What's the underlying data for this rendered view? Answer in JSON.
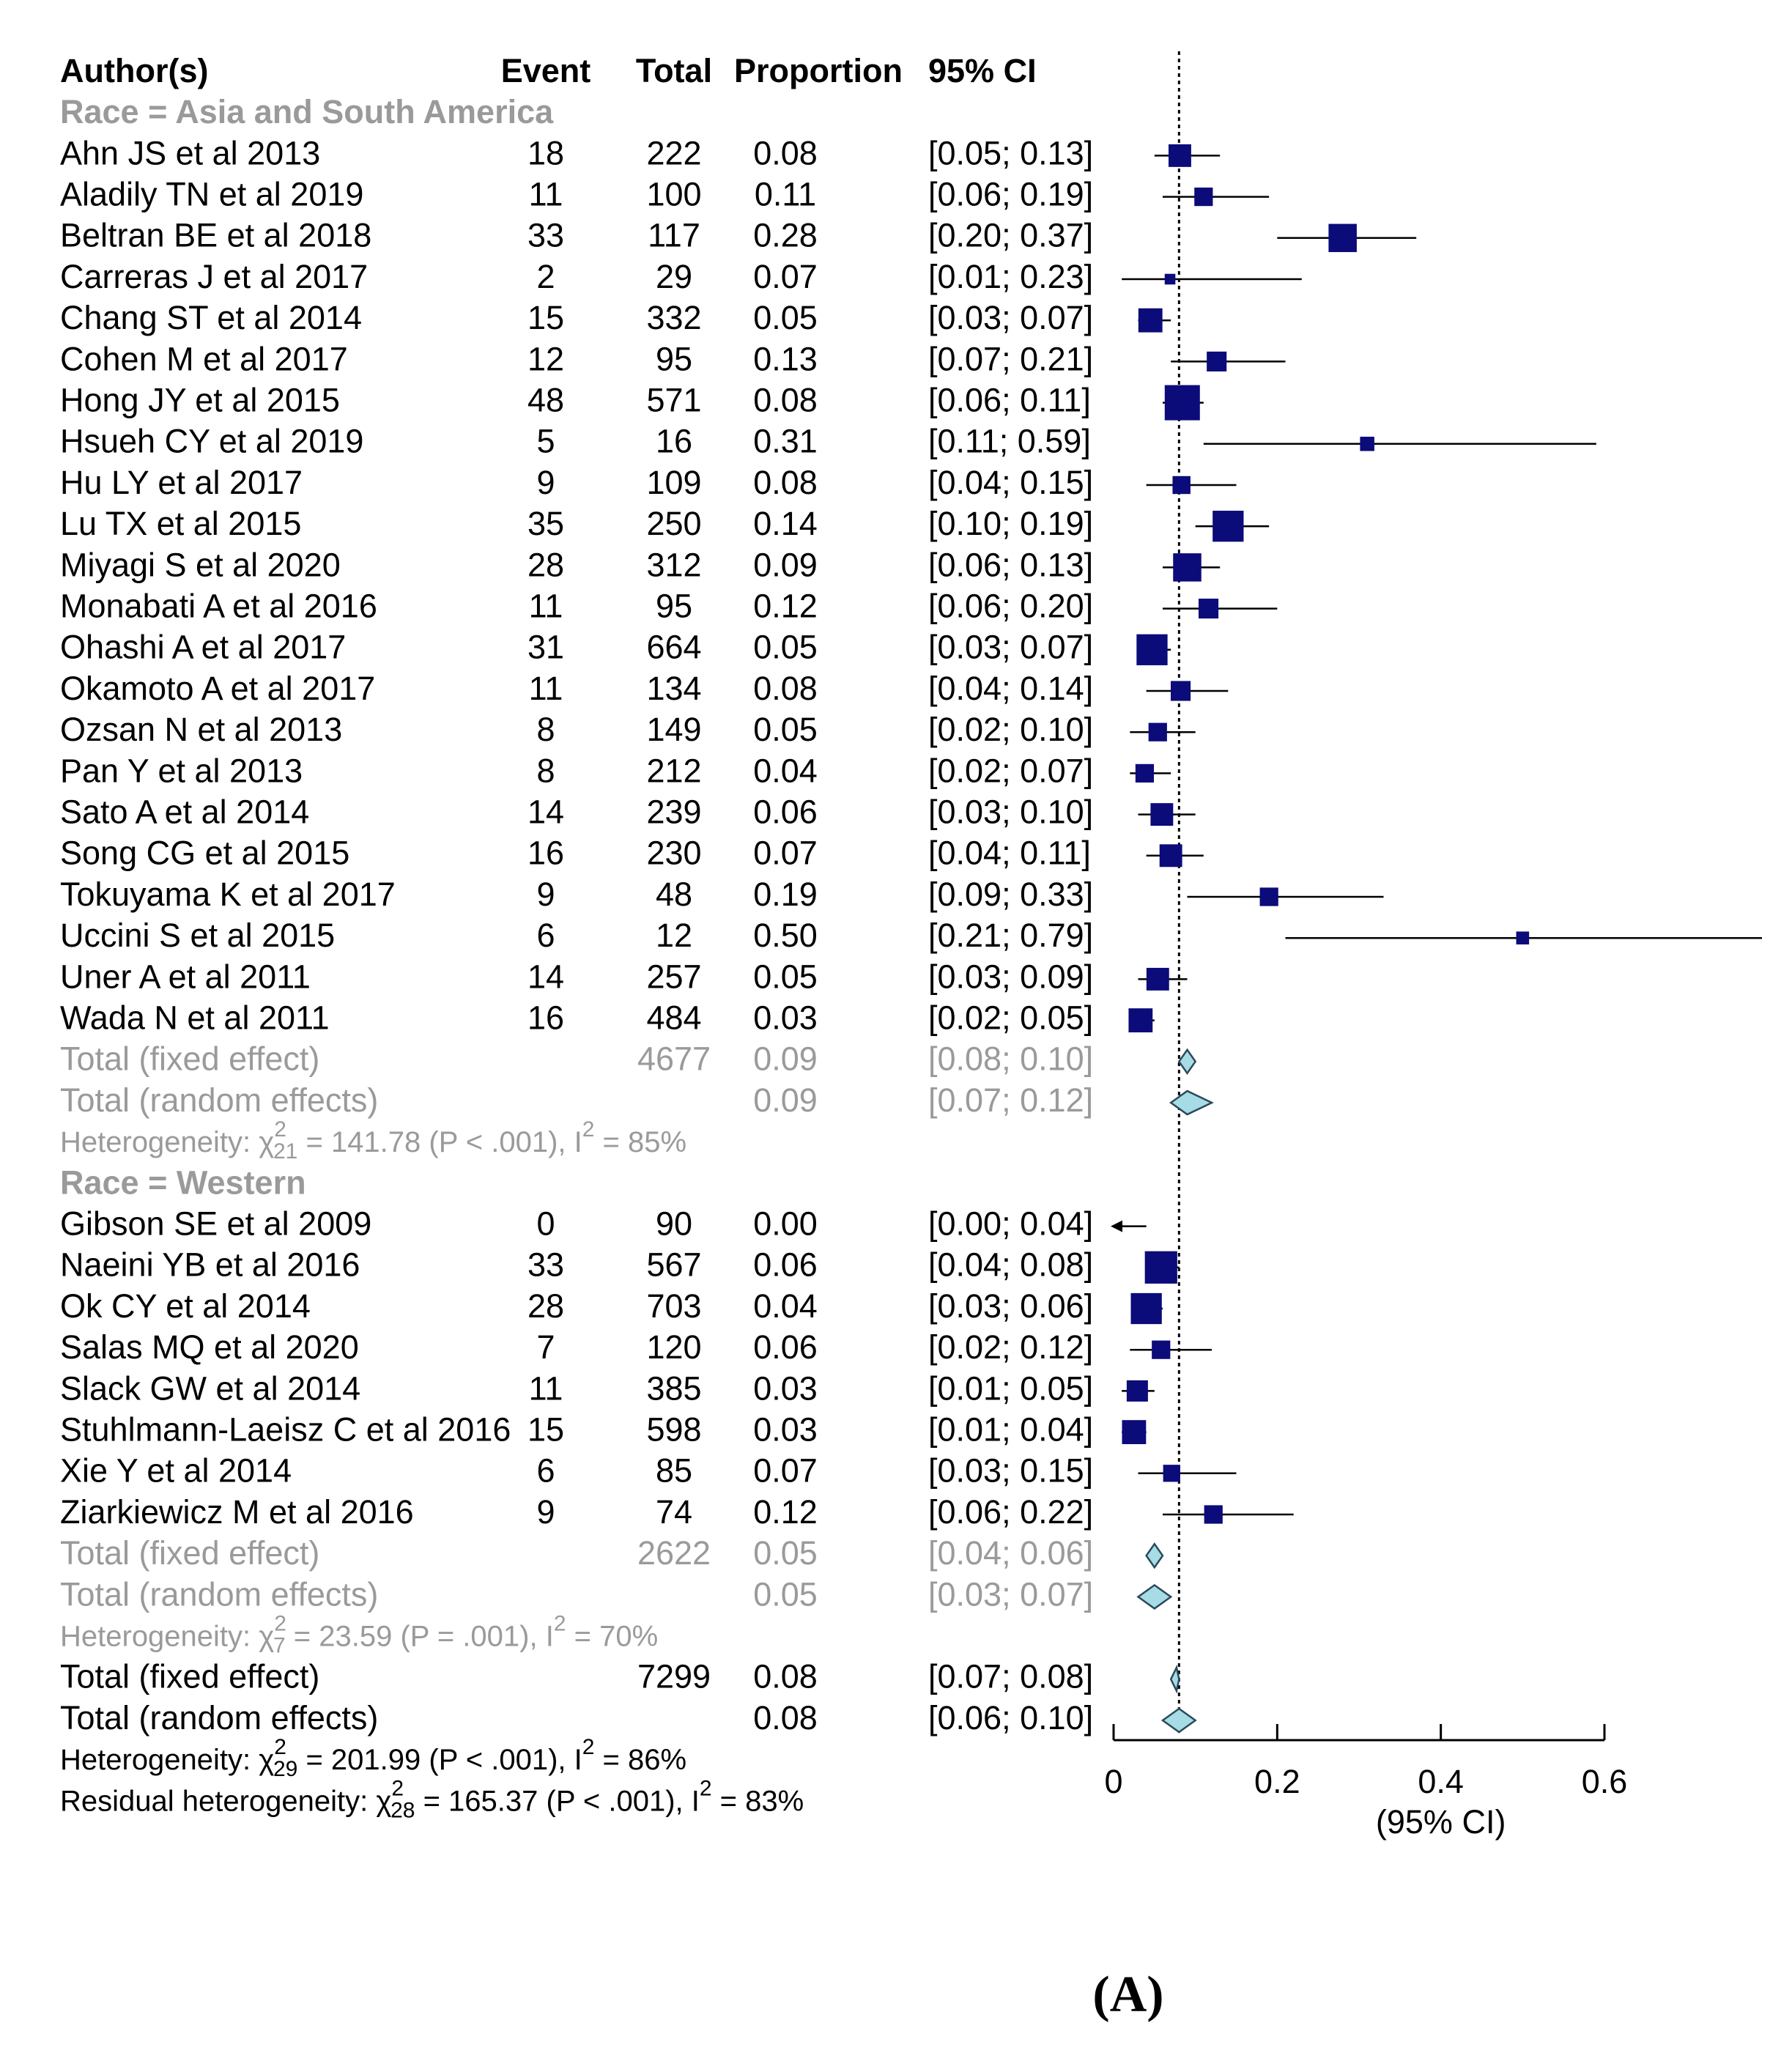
{
  "chart_data": {
    "type": "forest",
    "panel_label": "(A)",
    "columns": {
      "author": "Author(s)",
      "event": "Event",
      "total": "Total",
      "proportion": "Proportion",
      "ci": "95% CI"
    },
    "x_axis": {
      "label": "(95% CI)",
      "range": [
        0,
        0.6
      ],
      "ticks": [
        0,
        0.2,
        0.4,
        0.6
      ],
      "tick_labels": [
        "0",
        "0.2",
        "0.4",
        "0.6"
      ],
      "reference_line": 0.08
    },
    "groups": [
      {
        "label": "Race = Asia and South America",
        "studies": [
          {
            "author": "Ahn JS et al 2013",
            "event": "18",
            "total": "222",
            "prop": "0.08",
            "ci": "[0.05; 0.13]",
            "est": 0.081,
            "lo": 0.05,
            "hi": 0.13,
            "weight": 0.55
          },
          {
            "author": "Aladily TN et al 2019",
            "event": "11",
            "total": "100",
            "prop": "0.11",
            "ci": "[0.06; 0.19]",
            "est": 0.11,
            "lo": 0.06,
            "hi": 0.19,
            "weight": 0.4
          },
          {
            "author": "Beltran BE et al 2018",
            "event": "33",
            "total": "117",
            "prop": "0.28",
            "ci": "[0.20; 0.37]",
            "est": 0.28,
            "lo": 0.2,
            "hi": 0.37,
            "weight": 0.75
          },
          {
            "author": "Carreras J et al 2017",
            "event": "2",
            "total": "29",
            "prop": "0.07",
            "ci": "[0.01; 0.23]",
            "est": 0.069,
            "lo": 0.01,
            "hi": 0.23,
            "weight": 0.12
          },
          {
            "author": "Chang ST et al 2014",
            "event": "15",
            "total": "332",
            "prop": "0.05",
            "ci": "[0.03; 0.07]",
            "est": 0.045,
            "lo": 0.03,
            "hi": 0.07,
            "weight": 0.6
          },
          {
            "author": "Cohen M et al 2017",
            "event": "12",
            "total": "95",
            "prop": "0.13",
            "ci": "[0.07; 0.21]",
            "est": 0.126,
            "lo": 0.07,
            "hi": 0.21,
            "weight": 0.45
          },
          {
            "author": "Hong JY et al 2015",
            "event": "48",
            "total": "571",
            "prop": "0.08",
            "ci": "[0.06; 0.11]",
            "est": 0.084,
            "lo": 0.06,
            "hi": 0.11,
            "weight": 1.0
          },
          {
            "author": "Hsueh CY et al 2019",
            "event": "5",
            "total": "16",
            "prop": "0.31",
            "ci": "[0.11; 0.59]",
            "est": 0.31,
            "lo": 0.11,
            "hi": 0.59,
            "weight": 0.25
          },
          {
            "author": "Hu LY et al 2017",
            "event": "9",
            "total": "109",
            "prop": "0.08",
            "ci": "[0.04; 0.15]",
            "est": 0.083,
            "lo": 0.04,
            "hi": 0.15,
            "weight": 0.38
          },
          {
            "author": "Lu TX et al 2015",
            "event": "35",
            "total": "250",
            "prop": "0.14",
            "ci": "[0.10; 0.19]",
            "est": 0.14,
            "lo": 0.1,
            "hi": 0.19,
            "weight": 0.85
          },
          {
            "author": "Miyagi S et al 2020",
            "event": "28",
            "total": "312",
            "prop": "0.09",
            "ci": "[0.06; 0.13]",
            "est": 0.09,
            "lo": 0.06,
            "hi": 0.13,
            "weight": 0.75
          },
          {
            "author": "Monabati A et al 2016",
            "event": "11",
            "total": "95",
            "prop": "0.12",
            "ci": "[0.06; 0.20]",
            "est": 0.116,
            "lo": 0.06,
            "hi": 0.2,
            "weight": 0.45
          },
          {
            "author": "Ohashi A et al 2017",
            "event": "31",
            "total": "664",
            "prop": "0.05",
            "ci": "[0.03; 0.07]",
            "est": 0.047,
            "lo": 0.03,
            "hi": 0.07,
            "weight": 0.85
          },
          {
            "author": "Okamoto A et al 2017",
            "event": "11",
            "total": "134",
            "prop": "0.08",
            "ci": "[0.04; 0.14]",
            "est": 0.082,
            "lo": 0.04,
            "hi": 0.14,
            "weight": 0.45
          },
          {
            "author": "Ozsan N et al 2013",
            "event": "8",
            "total": "149",
            "prop": "0.05",
            "ci": "[0.02; 0.10]",
            "est": 0.054,
            "lo": 0.02,
            "hi": 0.1,
            "weight": 0.4
          },
          {
            "author": "Pan Y et al 2013",
            "event": "8",
            "total": "212",
            "prop": "0.04",
            "ci": "[0.02; 0.07]",
            "est": 0.038,
            "lo": 0.02,
            "hi": 0.07,
            "weight": 0.4
          },
          {
            "author": "Sato A et al 2014",
            "event": "14",
            "total": "239",
            "prop": "0.06",
            "ci": "[0.03; 0.10]",
            "est": 0.059,
            "lo": 0.03,
            "hi": 0.1,
            "weight": 0.55
          },
          {
            "author": "Song CG et al 2015",
            "event": "16",
            "total": "230",
            "prop": "0.07",
            "ci": "[0.04; 0.11]",
            "est": 0.07,
            "lo": 0.04,
            "hi": 0.11,
            "weight": 0.55
          },
          {
            "author": "Tokuyama K et al 2017",
            "event": "9",
            "total": "48",
            "prop": "0.19",
            "ci": "[0.09; 0.33]",
            "est": 0.19,
            "lo": 0.09,
            "hi": 0.33,
            "weight": 0.4
          },
          {
            "author": "Uccini S et al 2015",
            "event": "6",
            "total": "12",
            "prop": "0.50",
            "ci": "[0.21; 0.79]",
            "est": 0.5,
            "lo": 0.21,
            "hi": 0.79,
            "weight": 0.2
          },
          {
            "author": "Uner A et al 2011",
            "event": "14",
            "total": "257",
            "prop": "0.05",
            "ci": "[0.03; 0.09]",
            "est": 0.054,
            "lo": 0.03,
            "hi": 0.09,
            "weight": 0.55
          },
          {
            "author": "Wada N et al 2011",
            "event": "16",
            "total": "484",
            "prop": "0.03",
            "ci": "[0.02; 0.05]",
            "est": 0.033,
            "lo": 0.02,
            "hi": 0.05,
            "weight": 0.6
          }
        ],
        "fixed": {
          "label": "Total (fixed effect)",
          "total": "4677",
          "prop": "0.09",
          "ci": "[0.08; 0.10]",
          "est": 0.09,
          "lo": 0.08,
          "hi": 0.1
        },
        "random": {
          "label": "Total (random effects)",
          "prop": "0.09",
          "ci": "[0.07; 0.12]",
          "est": 0.09,
          "lo": 0.07,
          "hi": 0.12
        },
        "heterogeneity": {
          "prefix": "Heterogeneity: χ",
          "df": "21",
          "sup": "2",
          "rest": " = 141.78 (P < .001), I",
          "isup": "2",
          "tail": " = 85%"
        }
      },
      {
        "label": "Race = Western",
        "studies": [
          {
            "author": "Gibson SE et al 2009",
            "event": "0",
            "total": "90",
            "prop": "0.00",
            "ci": "[0.00; 0.04]",
            "est": 0.0,
            "lo": 0.0,
            "hi": 0.04,
            "weight": 0.0
          },
          {
            "author": "Naeini YB et al 2016",
            "event": "33",
            "total": "567",
            "prop": "0.06",
            "ci": "[0.04; 0.08]",
            "est": 0.058,
            "lo": 0.04,
            "hi": 0.08,
            "weight": 0.9
          },
          {
            "author": "Ok CY et al 2014",
            "event": "28",
            "total": "703",
            "prop": "0.04",
            "ci": "[0.03; 0.06]",
            "est": 0.04,
            "lo": 0.03,
            "hi": 0.06,
            "weight": 0.85
          },
          {
            "author": "Salas MQ et al 2020",
            "event": "7",
            "total": "120",
            "prop": "0.06",
            "ci": "[0.02; 0.12]",
            "est": 0.058,
            "lo": 0.02,
            "hi": 0.12,
            "weight": 0.4
          },
          {
            "author": "Slack GW et al 2014",
            "event": "11",
            "total": "385",
            "prop": "0.03",
            "ci": "[0.01; 0.05]",
            "est": 0.029,
            "lo": 0.01,
            "hi": 0.05,
            "weight": 0.5
          },
          {
            "author": "Stuhlmann-Laeisz C et al 2016",
            "event": "15",
            "total": "598",
            "prop": "0.03",
            "ci": "[0.01; 0.04]",
            "est": 0.025,
            "lo": 0.01,
            "hi": 0.04,
            "weight": 0.6
          },
          {
            "author": "Xie Y et al 2014",
            "event": "6",
            "total": "85",
            "prop": "0.07",
            "ci": "[0.03; 0.15]",
            "est": 0.071,
            "lo": 0.03,
            "hi": 0.15,
            "weight": 0.35
          },
          {
            "author": "Ziarkiewicz M et al 2016",
            "event": "9",
            "total": "74",
            "prop": "0.12",
            "ci": "[0.06; 0.22]",
            "est": 0.122,
            "lo": 0.06,
            "hi": 0.22,
            "weight": 0.4
          }
        ],
        "fixed": {
          "label": "Total (fixed effect)",
          "total": "2622",
          "prop": "0.05",
          "ci": "[0.04; 0.06]",
          "est": 0.05,
          "lo": 0.04,
          "hi": 0.06
        },
        "random": {
          "label": "Total (random effects)",
          "prop": "0.05",
          "ci": "[0.03; 0.07]",
          "est": 0.05,
          "lo": 0.03,
          "hi": 0.07
        },
        "heterogeneity": {
          "prefix": "Heterogeneity: χ",
          "df": "7",
          "sup": "2",
          "rest": " = 23.59 (P = .001), I",
          "isup": "2",
          "tail": " = 70%"
        }
      }
    ],
    "overall": {
      "fixed": {
        "label": "Total (fixed effect)",
        "total": "7299",
        "prop": "0.08",
        "ci": "[0.07; 0.08]",
        "est": 0.077,
        "lo": 0.07,
        "hi": 0.08
      },
      "random": {
        "label": "Total (random effects)",
        "prop": "0.08",
        "ci": "[0.06; 0.10]",
        "est": 0.08,
        "lo": 0.06,
        "hi": 0.1
      },
      "heterogeneity": {
        "prefix": "Heterogeneity: χ",
        "df": "29",
        "sup": "2",
        "rest": " = 201.99 (P < .001), I",
        "isup": "2",
        "tail": " = 86%"
      },
      "residual": {
        "prefix": "Residual heterogeneity: χ",
        "df": "28",
        "sup": "2",
        "rest": " = 165.37 (P < .001), I",
        "isup": "2",
        "tail": " = 83%"
      }
    },
    "colors": {
      "square": "#0b0b7a",
      "diamond_fill": "#a7dbe6",
      "diamond_stroke": "#2a4a5a",
      "summary_text": "#9a9a9a"
    }
  }
}
